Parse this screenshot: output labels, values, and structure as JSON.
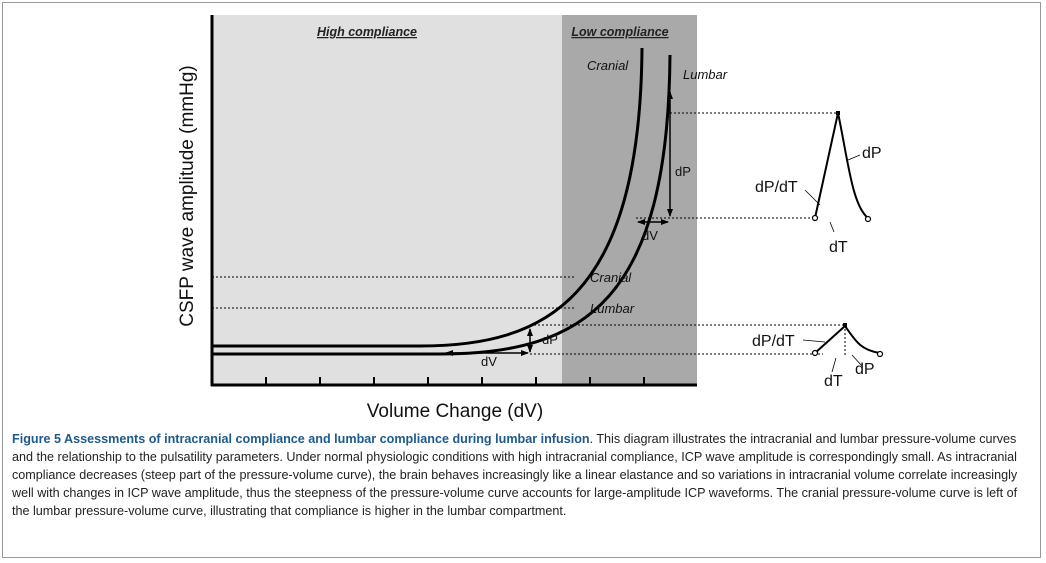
{
  "figure": {
    "high_compliance": "High compliance",
    "low_compliance": "Low compliance",
    "y_axis_label": "CSFP wave amplitude (mmHg)",
    "x_axis_label": "Volume Change (dV)",
    "curve_cranial": "Cranial",
    "curve_lumbar": "Lumbar",
    "level_cranial": "Cranial",
    "level_lumbar": "Lumbar",
    "upper_dP": "dP",
    "upper_dV": "dV",
    "lower_dP": "dP",
    "lower_dV": "dV",
    "upper_wave_slope": "dP/dT",
    "upper_wave_dP": "dP",
    "upper_wave_dT": "dT",
    "lower_wave_slope": "dP/dT",
    "lower_wave_dP": "dP",
    "lower_wave_dT": "dT"
  },
  "caption": {
    "title": "Figure 5 Assessments of intracranial compliance and lumbar compliance during lumbar infusion",
    "text": ". This diagram illustrates the intracranial and lumbar pressure-volume curves and the relationship to the pulsatility parameters. Under normal physiologic conditions with high intracranial compliance, ICP wave amplitude is correspondingly small. As intracranial compliance decreases (steep part of the pressure-volume curve), the brain behaves increasingly like a linear elastance and so variations in intracranial volume correlate increasingly well with changes in ICP wave amplitude, thus the steepness of the pressure-volume curve accounts for large-amplitude ICP waveforms. The cranial pressure-volume curve is left of the lumbar pressure-volume curve, illustrating that compliance is higher in the lumbar compartment."
  }
}
